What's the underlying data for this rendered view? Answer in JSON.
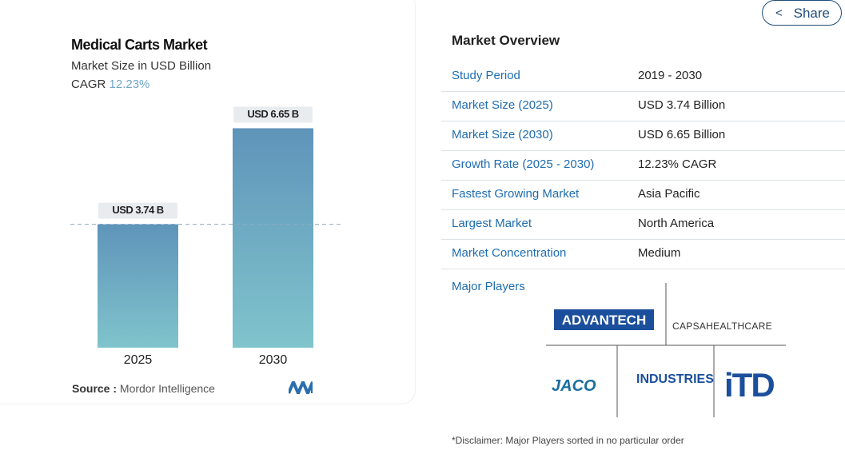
{
  "chart_data": {
    "type": "bar",
    "title": "Medical Carts Market",
    "subtitle": "Market Size in USD Billion",
    "cagr_label": "CAGR",
    "cagr": "12.23%",
    "categories": [
      "2025",
      "2030"
    ],
    "values": [
      3.74,
      6.65
    ],
    "value_labels": [
      "USD 3.74 B",
      "USD 6.65 B"
    ],
    "ylim": [
      0,
      7
    ],
    "colors": [
      "#5f94ba",
      "#80c4cc"
    ],
    "source_label": "Source :",
    "source": "Mordor Intelligence"
  },
  "share": "Share",
  "overview": {
    "title": "Market Overview",
    "rows": [
      [
        "Study Period",
        "2019 - 2030"
      ],
      [
        "Market Size (2025)",
        "USD 3.74 Billion"
      ],
      [
        "Market Size (2030)",
        "USD 6.65 Billion"
      ],
      [
        "Growth Rate (2025 - 2030)",
        "12.23% CAGR"
      ],
      [
        "Fastest Growing Market",
        "Asia Pacific"
      ],
      [
        "Largest Market",
        "North America"
      ],
      [
        "Market Concentration",
        "Medium"
      ]
    ]
  },
  "major_players": {
    "title": "Major Players",
    "players": [
      "ADVANTECH",
      "CAPSAHEALTHCARE",
      "JACO",
      "INDUSTRIES",
      "iTD"
    ]
  },
  "disclaimer": "*Disclaimer: Major Players sorted in no particular order"
}
